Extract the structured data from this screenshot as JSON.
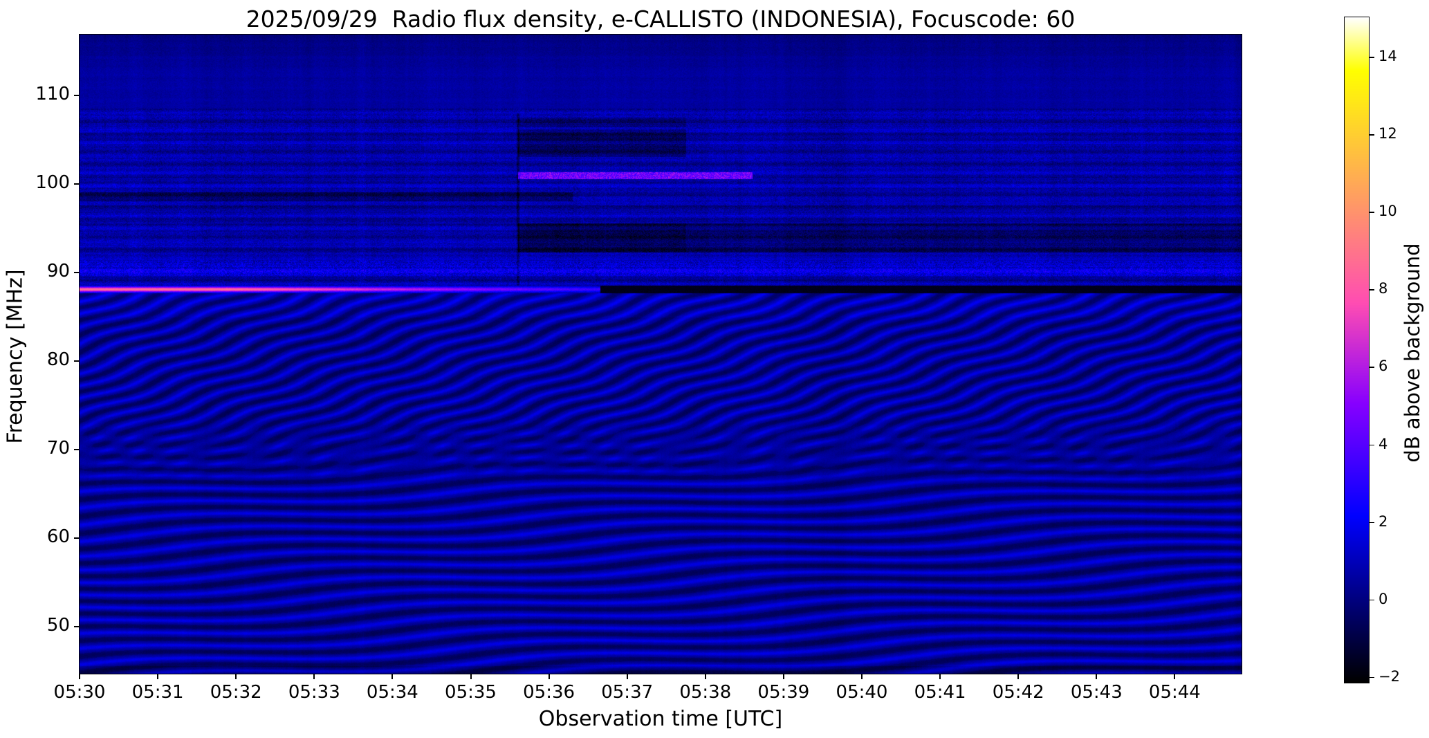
{
  "title": "2025/09/29  Radio flux density, e-CALLISTO (INDONESIA), Focuscode: 60",
  "axes": {
    "xlabel": "Observation time [UTC]",
    "ylabel": "Frequency [MHz]",
    "x_tick_labels": [
      "05:30",
      "05:31",
      "05:32",
      "05:33",
      "05:34",
      "05:35",
      "05:36",
      "05:37",
      "05:38",
      "05:39",
      "05:40",
      "05:41",
      "05:42",
      "05:43",
      "05:44"
    ],
    "y_tick_labels": [
      "110",
      "100",
      "90",
      "80",
      "70",
      "60",
      "50"
    ]
  },
  "colorbar": {
    "label": "dB above background",
    "tick_labels": [
      "14",
      "12",
      "10",
      "8",
      "6",
      "4",
      "2",
      "0",
      "−2"
    ]
  },
  "chart_data": {
    "type": "heatmap",
    "subtype": "radio-spectrogram",
    "title": "2025/09/29  Radio flux density, e-CALLISTO (INDONESIA), Focuscode: 60",
    "xlabel": "Observation time [UTC]",
    "ylabel": "Frequency [MHz]",
    "x_tick_labels": [
      "05:30",
      "05:31",
      "05:32",
      "05:33",
      "05:34",
      "05:35",
      "05:36",
      "05:37",
      "05:38",
      "05:39",
      "05:40",
      "05:41",
      "05:42",
      "05:43",
      "05:44"
    ],
    "x_range_minutes_after_0530": [
      0,
      14.85
    ],
    "y_tick_values_mhz": [
      110,
      100,
      90,
      80,
      70,
      60,
      50
    ],
    "ylim_mhz": [
      44.7,
      116.9
    ],
    "grid": false,
    "legend": "none",
    "colorbar": {
      "label": "dB above background",
      "tick_values": [
        14,
        12,
        10,
        8,
        6,
        4,
        2,
        0,
        -2
      ],
      "vmin": -2.1,
      "vmax": 15.0,
      "colormap": "gnuplot2-style: black → blue → violet → magenta/pink → orange → yellow → white"
    },
    "features": [
      {
        "name": "quiet-top-band",
        "freq_mhz": [
          108.6,
          116.9
        ],
        "time_min": [
          0,
          14.85
        ],
        "level_db": 0.5,
        "desc": "fairly uniform medium blue with faint vertical noise"
      },
      {
        "name": "fm-broadcast-band",
        "freq_mhz": [
          88.6,
          108.6
        ],
        "time_min": [
          0,
          14.85
        ],
        "level_db": "-1 to 2",
        "desc": "dense speckled noise with horizontal interference stripes"
      },
      {
        "name": "bright-carrier-88mhz",
        "freq_mhz": [
          87.7,
          88.6
        ],
        "time_min": [
          0,
          6.65
        ],
        "level_db": "up to ~8.5 fading to ~3",
        "desc": "bright magenta/pink horizontal line, brightest 05:30-05:32"
      },
      {
        "name": "carrier-dropout-88mhz",
        "freq_mhz": [
          87.7,
          88.6
        ],
        "time_min": [
          6.65,
          14.85
        ],
        "level_db": -1.9,
        "desc": "black horizontal band after carrier switches off ~05:36:40"
      },
      {
        "name": "bright-line-101mhz",
        "freq_mhz": [
          100.6,
          101.4
        ],
        "time_min": [
          5.6,
          8.6
        ],
        "level_db": "3 to 6",
        "desc": "bright blue-white emission line around 05:36-05:38"
      },
      {
        "name": "dark-band-93-95mhz",
        "freq_mhz": [
          92.3,
          95.6
        ],
        "time_min": [
          5.6,
          14.85
        ],
        "level_db": -1.4,
        "desc": "dark absorption band starting ~05:35:40"
      },
      {
        "name": "dark-band-98-99mhz",
        "freq_mhz": [
          98.1,
          99.1
        ],
        "time_min": [
          0,
          6.3
        ],
        "level_db": -0.8,
        "desc": "dark stripe on left half"
      },
      {
        "name": "dark-patch-103-106mhz",
        "freq_mhz": [
          103.1,
          106.2
        ],
        "time_min": [
          5.6,
          7.75
        ],
        "level_db": -1.0,
        "desc": "dark rectangular patch"
      },
      {
        "name": "speckle-rows-90mhz",
        "freq_mhz": [
          89.7,
          91.4
        ],
        "time_min": [
          0,
          14.85
        ],
        "level_db": "1 to 3",
        "desc": "bright blue speckled rows near 90 MHz"
      },
      {
        "name": "diagonal-ripples",
        "freq_mhz": [
          66,
          87.7
        ],
        "time_min": [
          0,
          14.85
        ],
        "level_db": "-0.5 to 1.5",
        "desc": "diagonal interference fringes sloping up to the right, ~1.6 MHz spacing"
      },
      {
        "name": "wavy-ripples",
        "freq_mhz": [
          44.7,
          66
        ],
        "time_min": [
          0,
          14.85
        ],
        "level_db": "-0.5 to 1.8",
        "desc": "undulating quasi-horizontal fringes"
      }
    ]
  }
}
